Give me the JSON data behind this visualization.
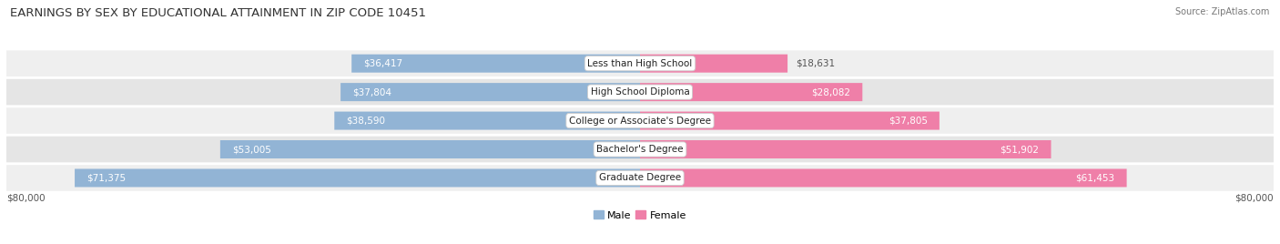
{
  "title": "EARNINGS BY SEX BY EDUCATIONAL ATTAINMENT IN ZIP CODE 10451",
  "source": "Source: ZipAtlas.com",
  "categories": [
    "Less than High School",
    "High School Diploma",
    "College or Associate's Degree",
    "Bachelor's Degree",
    "Graduate Degree"
  ],
  "male_values": [
    36417,
    37804,
    38590,
    53005,
    71375
  ],
  "female_values": [
    18631,
    28082,
    37805,
    51902,
    61453
  ],
  "max_value": 80000,
  "male_color": "#92b4d5",
  "female_color": "#ef7fa8",
  "row_bg_odd": "#efefef",
  "row_bg_even": "#e5e5e5",
  "axis_label": "$80,000",
  "title_fontsize": 9.5,
  "label_fontsize": 7.5,
  "category_fontsize": 7.5,
  "source_fontsize": 7,
  "legend_fontsize": 8,
  "inside_label_threshold": 20000
}
